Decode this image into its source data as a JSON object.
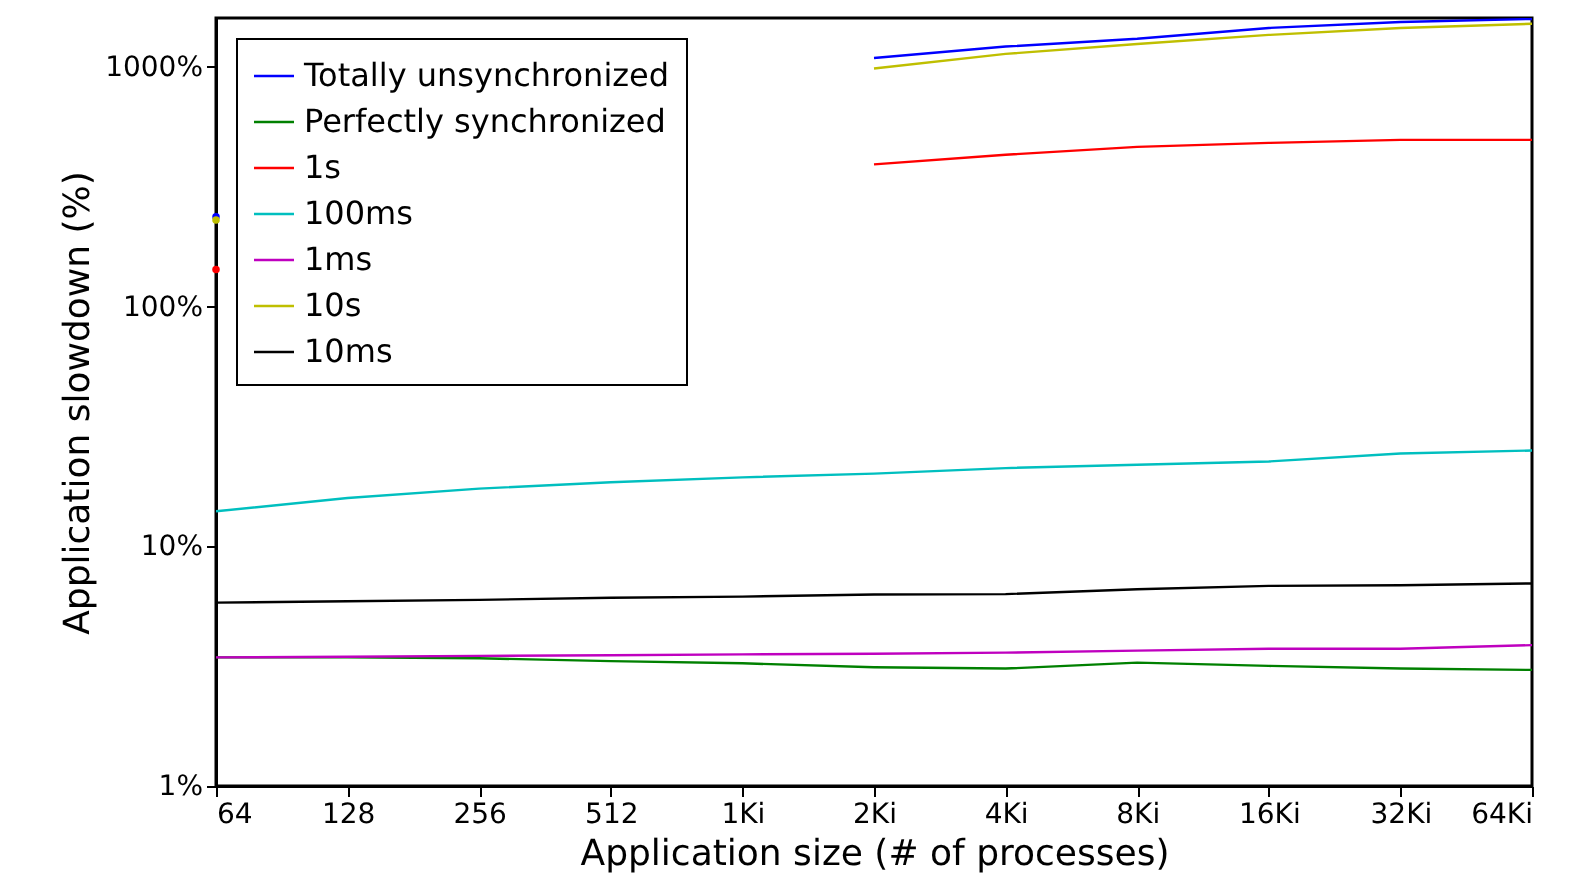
{
  "chart_data": {
    "type": "line",
    "xlabel": "Application size (# of processes)",
    "ylabel": "Application slowdown (%)",
    "categories": [
      "64",
      "128",
      "256",
      "512",
      "1Ki",
      "2Ki",
      "4Ki",
      "8Ki",
      "16Ki",
      "32Ki",
      "64Ki"
    ],
    "log": "y",
    "ylim": [
      1,
      1600
    ],
    "yticks": [
      {
        "value": 1,
        "label": "1%"
      },
      {
        "value": 10,
        "label": "10%"
      },
      {
        "value": 100,
        "label": "100%"
      },
      {
        "value": 1000,
        "label": "1000%"
      }
    ],
    "grid": false,
    "legend": "top left",
    "marker": "none",
    "line_style": "solid",
    "series": [
      {
        "name": "Totally unsynchronized",
        "color": "#0000ff",
        "values": [
          237,
          null,
          null,
          null,
          null,
          1090,
          1216,
          1311,
          1454,
          1540,
          1585
        ]
      },
      {
        "name": "Perfectly synchronized",
        "color": "#008000",
        "values": [
          3.44,
          3.44,
          3.41,
          3.32,
          3.25,
          3.13,
          3.09,
          3.27,
          3.17,
          3.09,
          3.05
        ]
      },
      {
        "name": "1s",
        "color": "#ff0000",
        "values": [
          143,
          null,
          null,
          null,
          null,
          392,
          430,
          464,
          482,
          496,
          496
        ]
      },
      {
        "name": "100ms",
        "color": "#00bfbf",
        "values": [
          14.0,
          15.9,
          17.4,
          18.5,
          19.4,
          20.1,
          21.2,
          21.9,
          22.6,
          24.4,
          25.1
        ]
      },
      {
        "name": "1ms",
        "color": "#bf00bf",
        "values": [
          3.44,
          3.46,
          3.49,
          3.51,
          3.54,
          3.56,
          3.6,
          3.67,
          3.74,
          3.74,
          3.87
        ]
      },
      {
        "name": "10s",
        "color": "#bfbf00",
        "values": [
          230,
          null,
          null,
          null,
          null,
          985,
          1133,
          1246,
          1360,
          1454,
          1513
        ]
      },
      {
        "name": "10ms",
        "color": "#000000",
        "values": [
          5.82,
          5.9,
          5.98,
          6.1,
          6.17,
          6.29,
          6.32,
          6.62,
          6.84,
          6.88,
          7.0
        ]
      }
    ]
  }
}
